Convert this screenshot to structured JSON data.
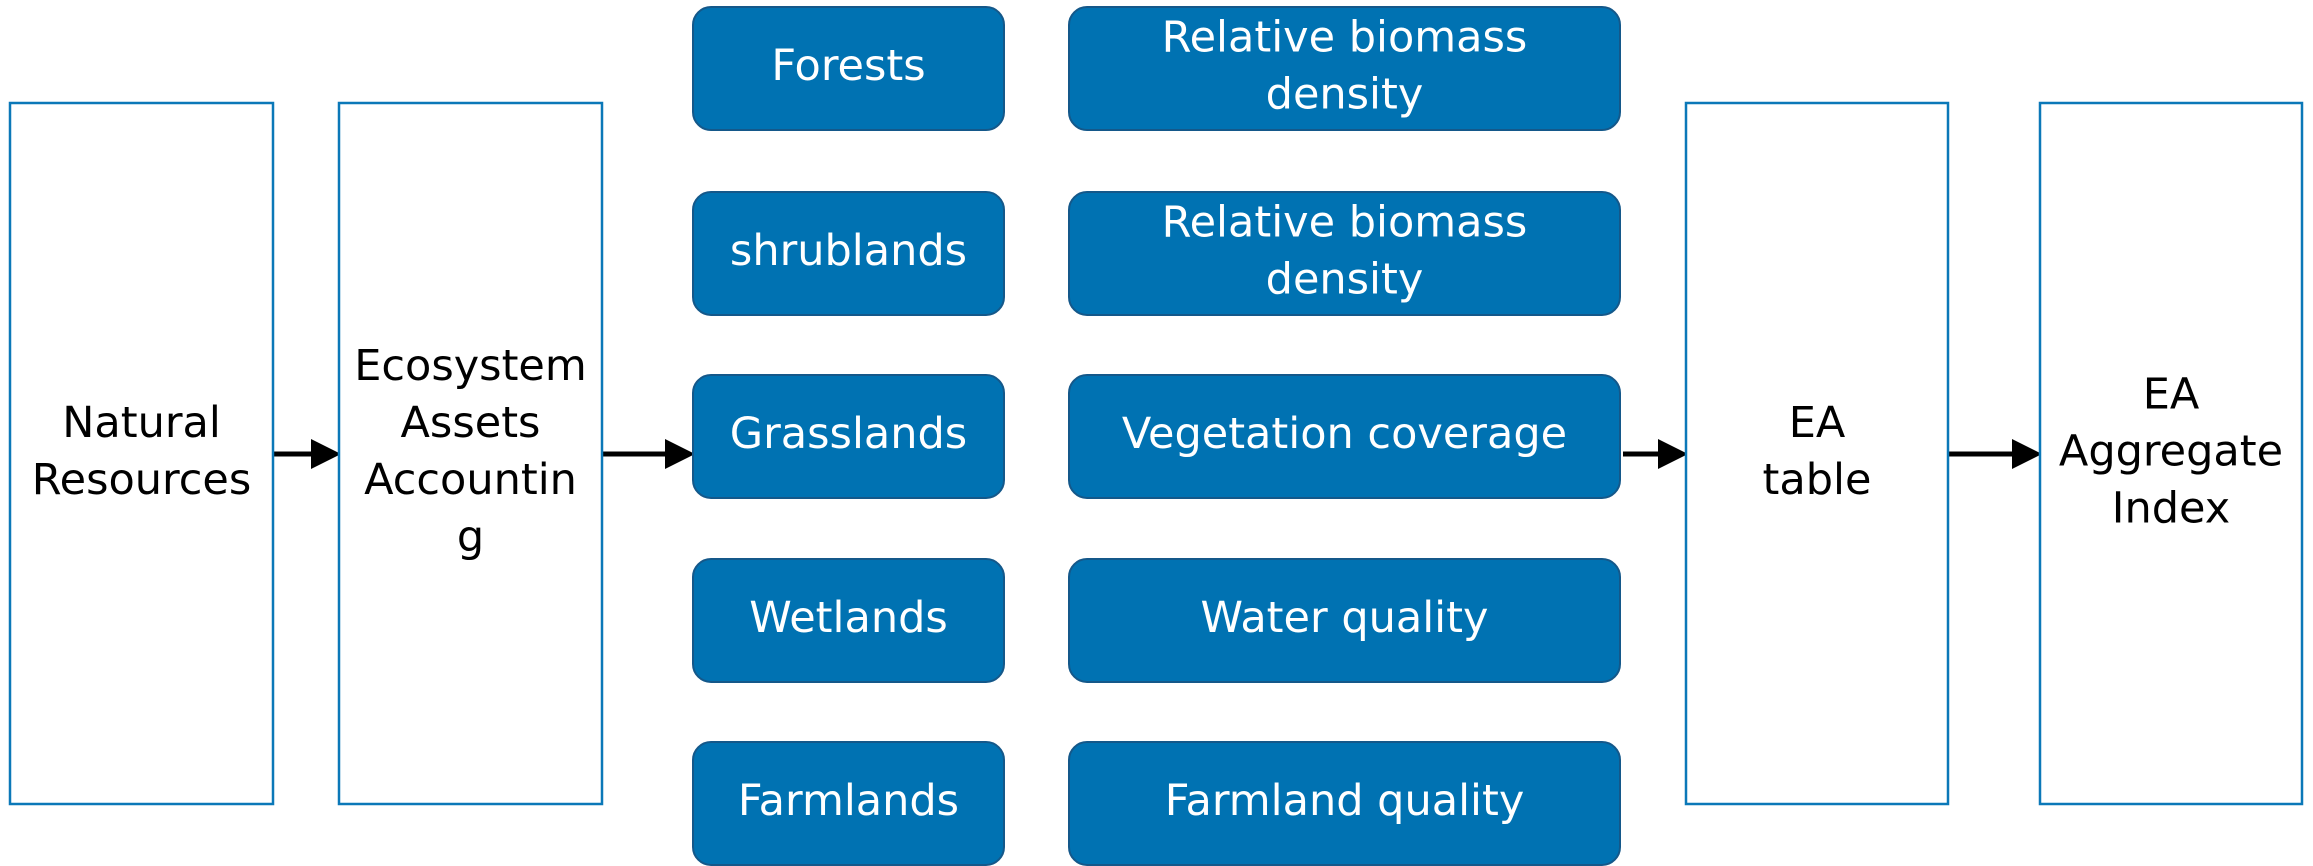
{
  "stages": [
    {
      "lines": [
        "Natural",
        "Resources"
      ]
    },
    {
      "lines": [
        "Ecosystem",
        "Assets",
        "Accountin",
        "g"
      ]
    }
  ],
  "ecosystems": [
    {
      "type": [
        "Forests"
      ],
      "indicator": [
        "Relative biomass",
        "density"
      ]
    },
    {
      "type": [
        "shrublands"
      ],
      "indicator": [
        "Relative biomass",
        "density"
      ]
    },
    {
      "type": [
        "Grasslands"
      ],
      "indicator": [
        "Vegetation coverage"
      ]
    },
    {
      "type": [
        "Wetlands"
      ],
      "indicator": [
        "Water quality"
      ]
    },
    {
      "type": [
        "Farmlands"
      ],
      "indicator": [
        "Farmland quality"
      ]
    }
  ],
  "outputs": [
    {
      "lines": [
        "EA",
        "table"
      ]
    },
    {
      "lines": [
        "EA",
        "Aggregate",
        "Index"
      ]
    }
  ]
}
